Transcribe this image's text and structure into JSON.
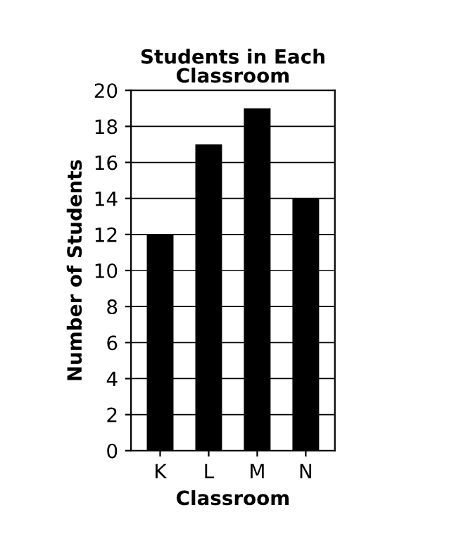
{
  "chart_data": {
    "type": "bar",
    "title": "Students in Each Classroom",
    "xlabel": "Classroom",
    "ylabel": "Number of Students",
    "categories": [
      "K",
      "L",
      "M",
      "N"
    ],
    "values": [
      12,
      17,
      19,
      14
    ],
    "color": "#000000",
    "ylim": [
      0,
      20
    ],
    "yticks": [
      0,
      2,
      4,
      6,
      8,
      10,
      12,
      14,
      16,
      18,
      20
    ],
    "grid": "y"
  }
}
